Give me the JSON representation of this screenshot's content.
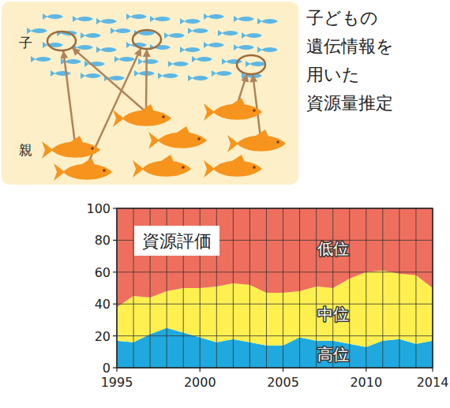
{
  "diagram": {
    "child_label": "子",
    "parent_label": "親",
    "caption_lines": [
      "子どもの",
      "遺伝情報を",
      "用いた",
      "資源量推定"
    ]
  },
  "chart_data": {
    "type": "area",
    "title": "資源評価",
    "stacked": true,
    "grid": true,
    "x": [
      1995,
      1996,
      1997,
      1998,
      1999,
      2000,
      2001,
      2002,
      2003,
      2004,
      2005,
      2006,
      2007,
      2008,
      2009,
      2010,
      2011,
      2012,
      2013,
      2014
    ],
    "xlim": [
      1995,
      2014
    ],
    "xticks": [
      1995,
      2000,
      2005,
      2010,
      2014
    ],
    "ylim": [
      0,
      100
    ],
    "yticks": [
      0,
      20,
      40,
      60,
      80,
      100
    ],
    "series": [
      {
        "name": "高位",
        "color": "#1fa9df",
        "values": [
          17,
          16,
          21,
          25,
          22,
          19,
          16,
          18,
          16,
          14,
          14,
          19,
          17,
          17,
          15,
          13,
          17,
          18,
          15,
          17
        ]
      },
      {
        "name": "中位",
        "color": "#fff04f",
        "values": [
          21,
          29,
          23,
          23,
          28,
          31,
          35,
          35,
          36,
          33,
          33,
          29,
          34,
          33,
          41,
          47,
          44,
          41,
          43,
          33
        ]
      },
      {
        "name": "低位",
        "color": "#ef6f5e",
        "values": [
          62,
          55,
          56,
          52,
          50,
          50,
          49,
          47,
          48,
          53,
          53,
          52,
          49,
          50,
          44,
          40,
          39,
          41,
          42,
          50
        ]
      }
    ]
  }
}
